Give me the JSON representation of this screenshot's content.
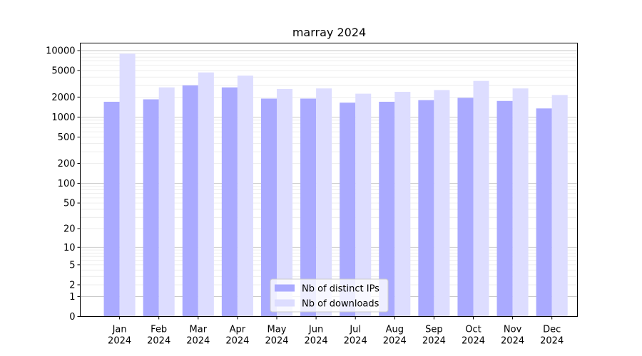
{
  "chart_data": {
    "type": "bar",
    "title": "marray 2024",
    "xlabel": "",
    "ylabel": "",
    "yscale": "symlog",
    "ylim": [
      0,
      13000
    ],
    "yticks": [
      0,
      1,
      2,
      5,
      10,
      20,
      50,
      100,
      200,
      500,
      1000,
      2000,
      5000,
      10000
    ],
    "ytick_labels": [
      "0",
      "1",
      "2",
      "5",
      "10",
      "20",
      "50",
      "100",
      "200",
      "500",
      "1000",
      "2000",
      "5000",
      "10000"
    ],
    "grid": true,
    "legend_position": "bottom-center",
    "categories": [
      "Jan\n2024",
      "Feb\n2024",
      "Mar\n2024",
      "Apr\n2024",
      "May\n2024",
      "Jun\n2024",
      "Jul\n2024",
      "Aug\n2024",
      "Sep\n2024",
      "Oct\n2024",
      "Nov\n2024",
      "Dec\n2024"
    ],
    "series": [
      {
        "name": "Nb of distinct IPs",
        "color": "#aaaaff",
        "values": [
          1700,
          1850,
          3000,
          2800,
          1900,
          1900,
          1650,
          1700,
          1800,
          1950,
          1750,
          1350
        ]
      },
      {
        "name": "Nb of downloads",
        "color": "#ddddff",
        "values": [
          9000,
          2800,
          4700,
          4200,
          2650,
          2700,
          2250,
          2400,
          2550,
          3500,
          2700,
          2150
        ]
      }
    ]
  }
}
